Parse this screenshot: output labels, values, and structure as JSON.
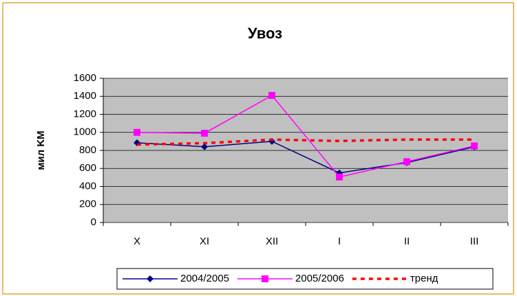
{
  "chart_data": {
    "type": "line",
    "title": "Увоз",
    "y_label": "мил KM",
    "categories": [
      "X",
      "XI",
      "XII",
      "I",
      "II",
      "III"
    ],
    "series": [
      {
        "name": "2004/2005",
        "color": "#000080",
        "marker": "diamond",
        "dashed": false,
        "values": [
          885,
          840,
          900,
          550,
          665,
          840
        ]
      },
      {
        "name": "2005/2006",
        "color": "#ff00ff",
        "marker": "square",
        "dashed": false,
        "values": [
          1000,
          990,
          1410,
          505,
          675,
          850
        ]
      },
      {
        "name": "тренд",
        "color": "#ff0000",
        "marker": "none",
        "dashed": true,
        "values": [
          865,
          880,
          920,
          905,
          920,
          920
        ]
      }
    ],
    "ylim": [
      0,
      1600
    ],
    "yticks": [
      0,
      200,
      400,
      600,
      800,
      1000,
      1200,
      1400,
      1600
    ],
    "grid": true,
    "legend": "bottom"
  }
}
